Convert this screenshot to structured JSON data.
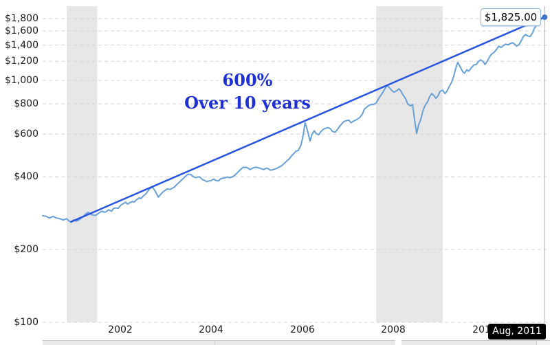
{
  "chart": {
    "annotation_line1": "600%",
    "annotation_line2": "Over 10 years",
    "last_price_label": "$1,825.00",
    "tooltip_date": "Aug, 2011",
    "colors": {
      "price_line": "#66a0d6",
      "trend_line": "#2653e0",
      "annotation_text": "#1c30d4",
      "gridline": "#d4d4da",
      "recession_band": "#e7e7e7",
      "axis_label": "#1a1a1a",
      "crosshair": "#adadad",
      "end_dot": "#3f74c8",
      "label_box_border": "#8cb4e2",
      "tooltip_bg": "#000000",
      "tooltip_text": "#ffffff"
    },
    "chart_data": {
      "type": "line",
      "y_scale": "log",
      "grid": "dashed-horizontal",
      "x_domain": [
        2000.3,
        2011.36
      ],
      "y_domain": [
        100,
        2040
      ],
      "y_ticks": [
        {
          "v": 100,
          "label": "$100"
        },
        {
          "v": 200,
          "label": "$200"
        },
        {
          "v": 400,
          "label": "$400"
        },
        {
          "v": 600,
          "label": "$600"
        },
        {
          "v": 800,
          "label": "$800"
        },
        {
          "v": 1000,
          "label": "$1,000"
        },
        {
          "v": 1200,
          "label": "$1,200"
        },
        {
          "v": 1400,
          "label": "$1,400"
        },
        {
          "v": 1600,
          "label": "$1,600"
        },
        {
          "v": 1800,
          "label": "$1,800"
        }
      ],
      "x_ticks": [
        {
          "v": 2002,
          "label": "2002"
        },
        {
          "v": 2004,
          "label": "2004"
        },
        {
          "v": 2006,
          "label": "2006"
        },
        {
          "v": 2008,
          "label": "2008"
        },
        {
          "v": 2010,
          "label": "2010"
        }
      ],
      "recession_bands": [
        [
          2000.83,
          2001.5
        ],
        [
          2007.62,
          2009.08
        ]
      ],
      "trend_line": {
        "from": [
          2000.92,
          260
        ],
        "to": [
          2011.32,
          1825
        ]
      },
      "end_point": [
        2011.32,
        1825
      ],
      "series": [
        [
          2000.3,
          276
        ],
        [
          2000.38,
          274
        ],
        [
          2000.45,
          270
        ],
        [
          2000.53,
          274
        ],
        [
          2000.6,
          270
        ],
        [
          2000.68,
          268
        ],
        [
          2000.75,
          265
        ],
        [
          2000.83,
          268
        ],
        [
          2000.87,
          263
        ],
        [
          2000.92,
          260
        ],
        [
          2000.98,
          265
        ],
        [
          2001.04,
          262
        ],
        [
          2001.1,
          265
        ],
        [
          2001.15,
          270
        ],
        [
          2001.21,
          276
        ],
        [
          2001.25,
          281
        ],
        [
          2001.3,
          285
        ],
        [
          2001.36,
          279
        ],
        [
          2001.42,
          277
        ],
        [
          2001.47,
          277
        ],
        [
          2001.51,
          281
        ],
        [
          2001.56,
          285
        ],
        [
          2001.6,
          288
        ],
        [
          2001.66,
          285
        ],
        [
          2001.71,
          288
        ],
        [
          2001.75,
          292
        ],
        [
          2001.81,
          288
        ],
        [
          2001.86,
          296
        ],
        [
          2001.9,
          297
        ],
        [
          2001.96,
          296
        ],
        [
          2002.01,
          304
        ],
        [
          2002.05,
          308
        ],
        [
          2002.12,
          314
        ],
        [
          2002.16,
          308
        ],
        [
          2002.21,
          312
        ],
        [
          2002.27,
          316
        ],
        [
          2002.31,
          314
        ],
        [
          2002.36,
          321
        ],
        [
          2002.42,
          327
        ],
        [
          2002.46,
          325
        ],
        [
          2002.51,
          333
        ],
        [
          2002.57,
          340
        ],
        [
          2002.61,
          349
        ],
        [
          2002.66,
          358
        ],
        [
          2002.71,
          362
        ],
        [
          2002.75,
          354
        ],
        [
          2002.8,
          340
        ],
        [
          2002.84,
          329
        ],
        [
          2002.89,
          338
        ],
        [
          2002.95,
          347
        ],
        [
          2002.99,
          351
        ],
        [
          2003.04,
          356
        ],
        [
          2003.1,
          354
        ],
        [
          2003.14,
          358
        ],
        [
          2003.19,
          362
        ],
        [
          2003.25,
          372
        ],
        [
          2003.3,
          379
        ],
        [
          2003.34,
          386
        ],
        [
          2003.4,
          396
        ],
        [
          2003.45,
          404
        ],
        [
          2003.49,
          409
        ],
        [
          2003.55,
          409
        ],
        [
          2003.6,
          401
        ],
        [
          2003.66,
          396
        ],
        [
          2003.7,
          399
        ],
        [
          2003.75,
          399
        ],
        [
          2003.81,
          389
        ],
        [
          2003.85,
          386
        ],
        [
          2003.9,
          382
        ],
        [
          2003.96,
          384
        ],
        [
          2004.01,
          386
        ],
        [
          2004.05,
          391
        ],
        [
          2004.1,
          386
        ],
        [
          2004.16,
          384
        ],
        [
          2004.2,
          391
        ],
        [
          2004.25,
          394
        ],
        [
          2004.31,
          396
        ],
        [
          2004.35,
          399
        ],
        [
          2004.4,
          396
        ],
        [
          2004.46,
          399
        ],
        [
          2004.51,
          404
        ],
        [
          2004.55,
          411
        ],
        [
          2004.61,
          422
        ],
        [
          2004.66,
          431
        ],
        [
          2004.7,
          437
        ],
        [
          2004.76,
          437
        ],
        [
          2004.81,
          434
        ],
        [
          2004.85,
          428
        ],
        [
          2004.91,
          434
        ],
        [
          2004.96,
          437
        ],
        [
          2005.0,
          437
        ],
        [
          2005.06,
          434
        ],
        [
          2005.11,
          431
        ],
        [
          2005.15,
          428
        ],
        [
          2005.21,
          434
        ],
        [
          2005.26,
          431
        ],
        [
          2005.3,
          425
        ],
        [
          2005.36,
          428
        ],
        [
          2005.41,
          431
        ],
        [
          2005.45,
          434
        ],
        [
          2005.51,
          440
        ],
        [
          2005.56,
          446
        ],
        [
          2005.61,
          455
        ],
        [
          2005.67,
          467
        ],
        [
          2005.71,
          473
        ],
        [
          2005.76,
          487
        ],
        [
          2005.82,
          500
        ],
        [
          2005.86,
          510
        ],
        [
          2005.91,
          513
        ],
        [
          2005.97,
          540
        ],
        [
          2006.02,
          596
        ],
        [
          2006.06,
          668
        ],
        [
          2006.11,
          622
        ],
        [
          2006.17,
          562
        ],
        [
          2006.21,
          596
        ],
        [
          2006.26,
          619
        ],
        [
          2006.3,
          604
        ],
        [
          2006.36,
          596
        ],
        [
          2006.41,
          615
        ],
        [
          2006.47,
          630
        ],
        [
          2006.51,
          634
        ],
        [
          2006.57,
          638
        ],
        [
          2006.62,
          630
        ],
        [
          2006.66,
          615
        ],
        [
          2006.72,
          611
        ],
        [
          2006.77,
          627
        ],
        [
          2006.81,
          642
        ],
        [
          2006.87,
          664
        ],
        [
          2006.92,
          677
        ],
        [
          2006.96,
          681
        ],
        [
          2007.02,
          685
        ],
        [
          2007.07,
          668
        ],
        [
          2007.11,
          677
        ],
        [
          2007.17,
          685
        ],
        [
          2007.22,
          694
        ],
        [
          2007.26,
          703
        ],
        [
          2007.32,
          726
        ],
        [
          2007.36,
          760
        ],
        [
          2007.41,
          775
        ],
        [
          2007.47,
          790
        ],
        [
          2007.52,
          795
        ],
        [
          2007.56,
          795
        ],
        [
          2007.62,
          806
        ],
        [
          2007.67,
          838
        ],
        [
          2007.71,
          860
        ],
        [
          2007.77,
          894
        ],
        [
          2007.82,
          929
        ],
        [
          2007.86,
          953
        ],
        [
          2007.92,
          929
        ],
        [
          2007.97,
          906
        ],
        [
          2008.01,
          894
        ],
        [
          2008.07,
          906
        ],
        [
          2008.12,
          923
        ],
        [
          2008.16,
          906
        ],
        [
          2008.22,
          865
        ],
        [
          2008.27,
          838
        ],
        [
          2008.31,
          800
        ],
        [
          2008.37,
          785
        ],
        [
          2008.42,
          795
        ],
        [
          2008.46,
          694
        ],
        [
          2008.51,
          604
        ],
        [
          2008.55,
          654
        ],
        [
          2008.6,
          690
        ],
        [
          2008.64,
          741
        ],
        [
          2008.69,
          785
        ],
        [
          2008.75,
          817
        ],
        [
          2008.79,
          854
        ],
        [
          2008.84,
          882
        ],
        [
          2008.89,
          865
        ],
        [
          2008.93,
          843
        ],
        [
          2008.98,
          865
        ],
        [
          2009.02,
          900
        ],
        [
          2009.08,
          912
        ],
        [
          2009.13,
          882
        ],
        [
          2009.17,
          900
        ],
        [
          2009.22,
          941
        ],
        [
          2009.28,
          985
        ],
        [
          2009.32,
          1038
        ],
        [
          2009.37,
          1127
        ],
        [
          2009.41,
          1187
        ],
        [
          2009.46,
          1142
        ],
        [
          2009.52,
          1085
        ],
        [
          2009.56,
          1071
        ],
        [
          2009.61,
          1106
        ],
        [
          2009.65,
          1092
        ],
        [
          2009.71,
          1127
        ],
        [
          2009.76,
          1157
        ],
        [
          2009.82,
          1164
        ],
        [
          2009.86,
          1195
        ],
        [
          2009.91,
          1216
        ],
        [
          2009.97,
          1195
        ],
        [
          2010.01,
          1164
        ],
        [
          2010.06,
          1202
        ],
        [
          2010.12,
          1261
        ],
        [
          2010.16,
          1287
        ],
        [
          2010.21,
          1307
        ],
        [
          2010.27,
          1350
        ],
        [
          2010.31,
          1385
        ],
        [
          2010.36,
          1368
        ],
        [
          2010.42,
          1394
        ],
        [
          2010.46,
          1412
        ],
        [
          2010.51,
          1403
        ],
        [
          2010.57,
          1421
        ],
        [
          2010.61,
          1431
        ],
        [
          2010.66,
          1412
        ],
        [
          2010.7,
          1385
        ],
        [
          2010.75,
          1403
        ],
        [
          2010.79,
          1440
        ],
        [
          2010.85,
          1518
        ],
        [
          2010.9,
          1548
        ],
        [
          2010.94,
          1528
        ],
        [
          2011.0,
          1518
        ],
        [
          2011.05,
          1568
        ],
        [
          2011.09,
          1641
        ],
        [
          2011.15,
          1695
        ],
        [
          2011.2,
          1752
        ],
        [
          2011.24,
          1798
        ],
        [
          2011.29,
          1833
        ],
        [
          2011.32,
          1825
        ]
      ]
    }
  }
}
